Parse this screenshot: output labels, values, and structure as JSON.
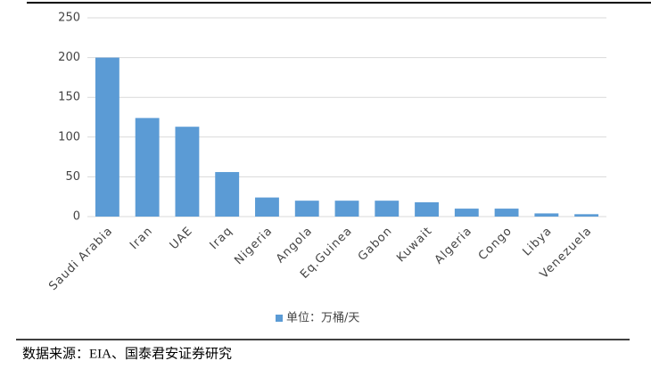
{
  "chart_data": {
    "type": "bar",
    "categories": [
      "Saudi Arabia",
      "Iran",
      "UAE",
      "Iraq",
      "Nigeria",
      "Angola",
      "Eq.Guinea",
      "Gabon",
      "Kuwait",
      "Algeria",
      "Congo",
      "Libya",
      "Venezuela"
    ],
    "series": [
      {
        "name": "单位：万桶/天",
        "color": "#5b9bd5",
        "values": [
          200,
          124,
          113,
          56,
          24,
          20,
          20,
          20,
          18,
          10,
          10,
          4,
          3
        ]
      }
    ],
    "ylim": [
      0,
      250
    ],
    "yticks": [
      0,
      50,
      100,
      150,
      200,
      250
    ],
    "grid": true,
    "legend": "bottom",
    "source": "数据来源：EIA、国泰君安证券研究"
  }
}
